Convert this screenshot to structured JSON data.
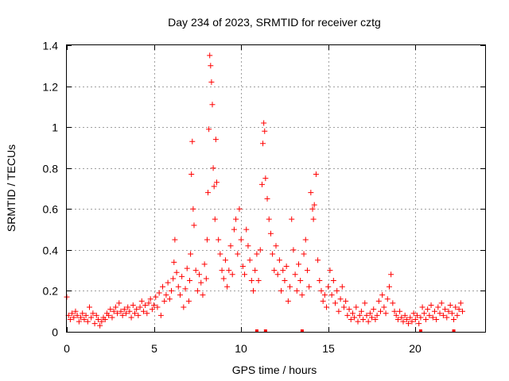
{
  "chart_data": {
    "type": "scatter",
    "title": "Day 234 of 2023, SRMTID for receiver cztg",
    "xlabel": "GPS time / hours",
    "ylabel": "SRMTID / TECUs",
    "xlim": [
      0,
      24
    ],
    "ylim": [
      0,
      1.4
    ],
    "xticks": [
      0,
      5,
      10,
      15,
      20
    ],
    "yticks": [
      0,
      0.2,
      0.4,
      0.6,
      0.8,
      1,
      1.2,
      1.4
    ],
    "xtick_labels": [
      "0",
      "5",
      "10",
      "15",
      "20"
    ],
    "ytick_labels": [
      "0",
      "0.2",
      "0.4",
      "0.6",
      "0.8",
      "1",
      "1.2",
      "1.4"
    ],
    "grid": true,
    "marker": "+",
    "marker_color": "#ff0000",
    "series": [
      {
        "name": "SRMTID",
        "points": [
          [
            0.0,
            0.17
          ],
          [
            0.1,
            0.08
          ],
          [
            0.2,
            0.06
          ],
          [
            0.3,
            0.09
          ],
          [
            0.4,
            0.07
          ],
          [
            0.5,
            0.1
          ],
          [
            0.6,
            0.08
          ],
          [
            0.7,
            0.05
          ],
          [
            0.8,
            0.07
          ],
          [
            0.9,
            0.09
          ],
          [
            1.0,
            0.06
          ],
          [
            1.1,
            0.08
          ],
          [
            1.2,
            0.05
          ],
          [
            1.3,
            0.12
          ],
          [
            1.4,
            0.07
          ],
          [
            1.5,
            0.09
          ],
          [
            1.6,
            0.04
          ],
          [
            1.7,
            0.08
          ],
          [
            1.8,
            0.06
          ],
          [
            1.9,
            0.03
          ],
          [
            2.0,
            0.05
          ],
          [
            2.1,
            0.07
          ],
          [
            2.2,
            0.06
          ],
          [
            2.3,
            0.09
          ],
          [
            2.4,
            0.08
          ],
          [
            2.5,
            0.11
          ],
          [
            2.6,
            0.07
          ],
          [
            2.7,
            0.1
          ],
          [
            2.8,
            0.12
          ],
          [
            2.9,
            0.09
          ],
          [
            3.0,
            0.14
          ],
          [
            3.1,
            0.1
          ],
          [
            3.2,
            0.08
          ],
          [
            3.3,
            0.11
          ],
          [
            3.4,
            0.09
          ],
          [
            3.5,
            0.12
          ],
          [
            3.6,
            0.1
          ],
          [
            3.7,
            0.07
          ],
          [
            3.8,
            0.13
          ],
          [
            3.9,
            0.09
          ],
          [
            4.0,
            0.11
          ],
          [
            4.1,
            0.08
          ],
          [
            4.2,
            0.12
          ],
          [
            4.3,
            0.15
          ],
          [
            4.4,
            0.1
          ],
          [
            4.5,
            0.13
          ],
          [
            4.6,
            0.09
          ],
          [
            4.7,
            0.14
          ],
          [
            4.8,
            0.16
          ],
          [
            4.9,
            0.11
          ],
          [
            5.0,
            0.13
          ],
          [
            5.1,
            0.17
          ],
          [
            5.2,
            0.12
          ],
          [
            5.3,
            0.19
          ],
          [
            5.4,
            0.08
          ],
          [
            5.5,
            0.22
          ],
          [
            5.6,
            0.15
          ],
          [
            5.7,
            0.18
          ],
          [
            5.8,
            0.24
          ],
          [
            5.9,
            0.16
          ],
          [
            6.0,
            0.2
          ],
          [
            6.1,
            0.26
          ],
          [
            6.15,
            0.34
          ],
          [
            6.2,
            0.45
          ],
          [
            6.3,
            0.29
          ],
          [
            6.4,
            0.22
          ],
          [
            6.5,
            0.18
          ],
          [
            6.6,
            0.27
          ],
          [
            6.7,
            0.12
          ],
          [
            6.8,
            0.21
          ],
          [
            6.9,
            0.31
          ],
          [
            7.0,
            0.15
          ],
          [
            7.05,
            0.25
          ],
          [
            7.1,
            0.38
          ],
          [
            7.15,
            0.77
          ],
          [
            7.2,
            0.93
          ],
          [
            7.25,
            0.6
          ],
          [
            7.3,
            0.52
          ],
          [
            7.4,
            0.3
          ],
          [
            7.5,
            0.2
          ],
          [
            7.6,
            0.28
          ],
          [
            7.7,
            0.24
          ],
          [
            7.8,
            0.18
          ],
          [
            7.9,
            0.33
          ],
          [
            8.0,
            0.26
          ],
          [
            8.05,
            0.45
          ],
          [
            8.1,
            0.68
          ],
          [
            8.15,
            0.99
          ],
          [
            8.2,
            1.35
          ],
          [
            8.25,
            1.3
          ],
          [
            8.3,
            1.22
          ],
          [
            8.35,
            1.11
          ],
          [
            8.4,
            0.8
          ],
          [
            8.45,
            0.71
          ],
          [
            8.5,
            0.55
          ],
          [
            8.55,
            0.94
          ],
          [
            8.6,
            0.73
          ],
          [
            8.7,
            0.45
          ],
          [
            8.8,
            0.38
          ],
          [
            8.9,
            0.3
          ],
          [
            9.0,
            0.26
          ],
          [
            9.1,
            0.35
          ],
          [
            9.2,
            0.22
          ],
          [
            9.3,
            0.3
          ],
          [
            9.4,
            0.42
          ],
          [
            9.5,
            0.28
          ],
          [
            9.6,
            0.5
          ],
          [
            9.7,
            0.55
          ],
          [
            9.8,
            0.38
          ],
          [
            9.9,
            0.6
          ],
          [
            10.0,
            0.45
          ],
          [
            10.1,
            0.32
          ],
          [
            10.2,
            0.28
          ],
          [
            10.3,
            0.5
          ],
          [
            10.4,
            0.42
          ],
          [
            10.5,
            0.35
          ],
          [
            10.6,
            0.25
          ],
          [
            10.7,
            0.2
          ],
          [
            10.8,
            0.3
          ],
          [
            10.9,
            0.38
          ],
          [
            11.0,
            0.25
          ],
          [
            11.1,
            0.4
          ],
          [
            11.2,
            0.72
          ],
          [
            11.25,
            0.92
          ],
          [
            11.3,
            1.02
          ],
          [
            11.35,
            0.98
          ],
          [
            11.4,
            0.75
          ],
          [
            11.5,
            0.65
          ],
          [
            11.6,
            0.55
          ],
          [
            11.7,
            0.48
          ],
          [
            11.8,
            0.38
          ],
          [
            11.9,
            0.3
          ],
          [
            12.0,
            0.42
          ],
          [
            12.1,
            0.28
          ],
          [
            12.2,
            0.35
          ],
          [
            12.3,
            0.2
          ],
          [
            12.4,
            0.3
          ],
          [
            12.5,
            0.25
          ],
          [
            12.6,
            0.32
          ],
          [
            12.7,
            0.15
          ],
          [
            12.8,
            0.22
          ],
          [
            12.9,
            0.55
          ],
          [
            13.0,
            0.4
          ],
          [
            13.1,
            0.28
          ],
          [
            13.2,
            0.2
          ],
          [
            13.3,
            0.33
          ],
          [
            13.4,
            0.25
          ],
          [
            13.5,
            0.18
          ],
          [
            13.6,
            0.38
          ],
          [
            13.7,
            0.45
          ],
          [
            13.8,
            0.3
          ],
          [
            13.9,
            0.22
          ],
          [
            14.0,
            0.68
          ],
          [
            14.1,
            0.6
          ],
          [
            14.15,
            0.55
          ],
          [
            14.2,
            0.62
          ],
          [
            14.3,
            0.77
          ],
          [
            14.4,
            0.35
          ],
          [
            14.5,
            0.25
          ],
          [
            14.6,
            0.2
          ],
          [
            14.7,
            0.15
          ],
          [
            14.8,
            0.18
          ],
          [
            14.9,
            0.12
          ],
          [
            15.0,
            0.22
          ],
          [
            15.1,
            0.3
          ],
          [
            15.2,
            0.18
          ],
          [
            15.3,
            0.25
          ],
          [
            15.4,
            0.14
          ],
          [
            15.5,
            0.2
          ],
          [
            15.6,
            0.1
          ],
          [
            15.7,
            0.16
          ],
          [
            15.8,
            0.22
          ],
          [
            15.9,
            0.12
          ],
          [
            16.0,
            0.15
          ],
          [
            16.1,
            0.08
          ],
          [
            16.2,
            0.11
          ],
          [
            16.3,
            0.06
          ],
          [
            16.4,
            0.09
          ],
          [
            16.5,
            0.07
          ],
          [
            16.6,
            0.12
          ],
          [
            16.7,
            0.05
          ],
          [
            16.8,
            0.08
          ],
          [
            16.9,
            0.1
          ],
          [
            17.0,
            0.06
          ],
          [
            17.1,
            0.14
          ],
          [
            17.2,
            0.08
          ],
          [
            17.3,
            0.05
          ],
          [
            17.4,
            0.09
          ],
          [
            17.5,
            0.07
          ],
          [
            17.6,
            0.11
          ],
          [
            17.7,
            0.06
          ],
          [
            17.8,
            0.08
          ],
          [
            17.9,
            0.15
          ],
          [
            18.0,
            0.1
          ],
          [
            18.1,
            0.18
          ],
          [
            18.2,
            0.12
          ],
          [
            18.3,
            0.09
          ],
          [
            18.4,
            0.16
          ],
          [
            18.5,
            0.22
          ],
          [
            18.6,
            0.28
          ],
          [
            18.7,
            0.14
          ],
          [
            18.8,
            0.1
          ],
          [
            18.9,
            0.08
          ],
          [
            19.0,
            0.06
          ],
          [
            19.1,
            0.1
          ],
          [
            19.2,
            0.07
          ],
          [
            19.3,
            0.05
          ],
          [
            19.4,
            0.08
          ],
          [
            19.5,
            0.06
          ],
          [
            19.6,
            0.04
          ],
          [
            19.7,
            0.07
          ],
          [
            19.8,
            0.05
          ],
          [
            19.9,
            0.09
          ],
          [
            20.0,
            0.06
          ],
          [
            20.1,
            0.08
          ],
          [
            20.2,
            0.04
          ],
          [
            20.3,
            0.07
          ],
          [
            20.4,
            0.12
          ],
          [
            20.5,
            0.09
          ],
          [
            20.6,
            0.06
          ],
          [
            20.7,
            0.11
          ],
          [
            20.8,
            0.08
          ],
          [
            20.9,
            0.13
          ],
          [
            21.0,
            0.07
          ],
          [
            21.1,
            0.1
          ],
          [
            21.2,
            0.06
          ],
          [
            21.3,
            0.12
          ],
          [
            21.4,
            0.09
          ],
          [
            21.5,
            0.14
          ],
          [
            21.6,
            0.08
          ],
          [
            21.7,
            0.11
          ],
          [
            21.8,
            0.07
          ],
          [
            21.9,
            0.1
          ],
          [
            22.0,
            0.13
          ],
          [
            22.1,
            0.09
          ],
          [
            22.2,
            0.06
          ],
          [
            22.3,
            0.12
          ],
          [
            22.4,
            0.08
          ],
          [
            22.5,
            0.11
          ],
          [
            22.6,
            0.14
          ],
          [
            22.7,
            0.1
          ]
        ]
      }
    ],
    "zero_flags_x": [
      10.9,
      11.4,
      13.5,
      20.3,
      22.2
    ]
  }
}
